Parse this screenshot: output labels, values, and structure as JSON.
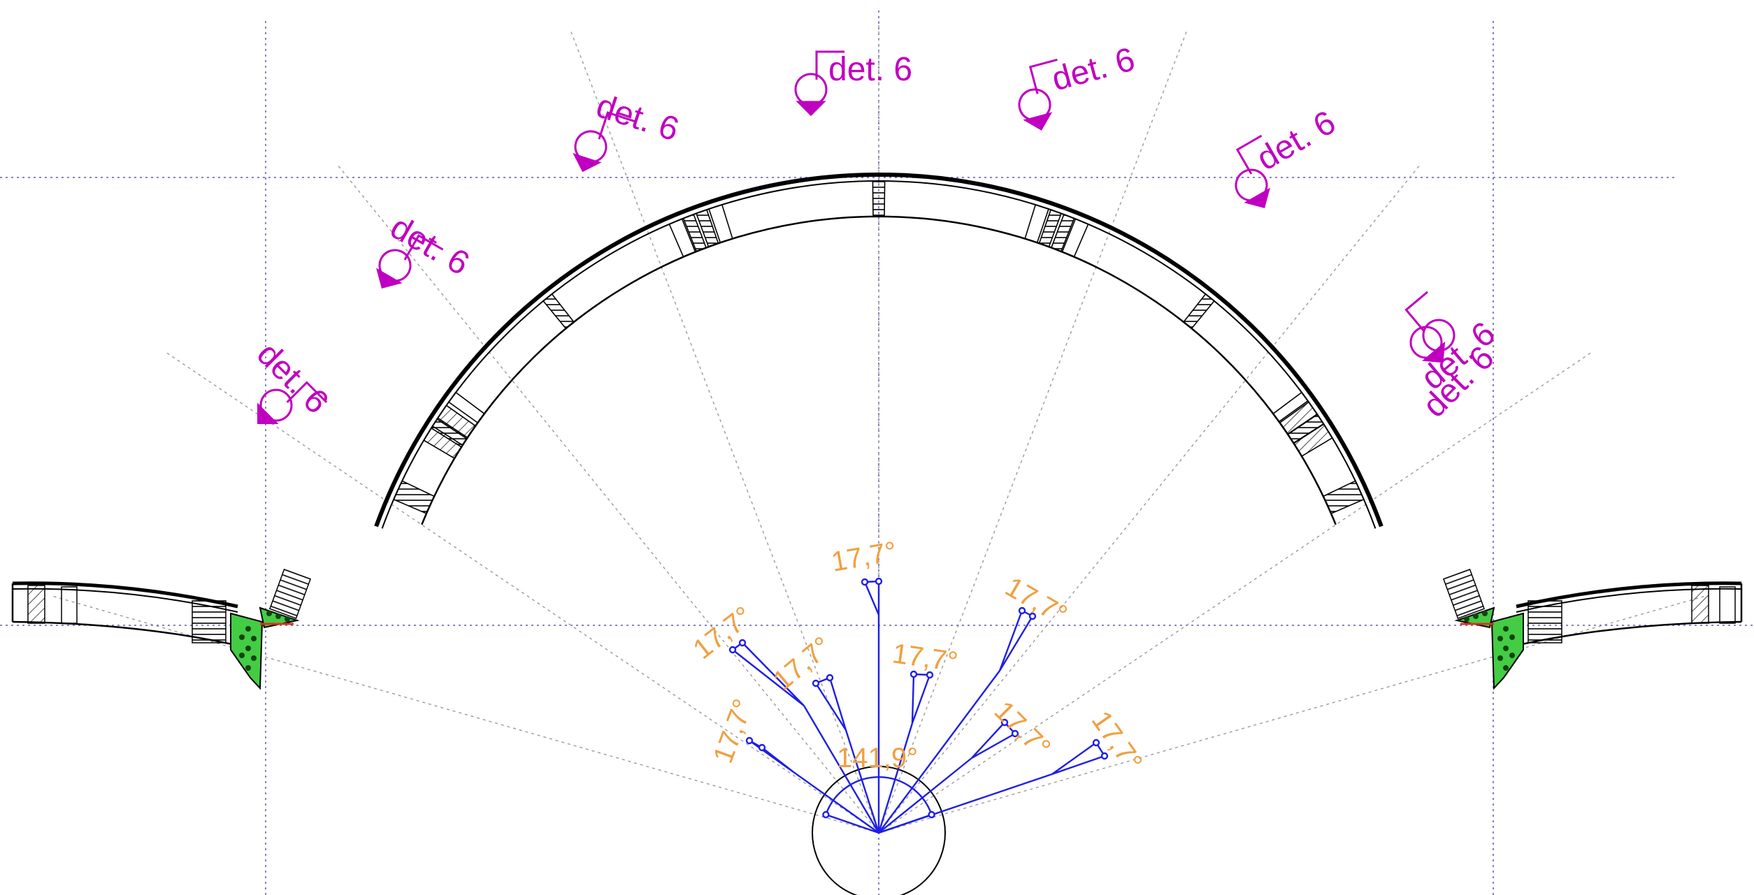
{
  "colors": {
    "structure": "#000000",
    "guides": "#5a5ab0",
    "rays": "#9a9a9a",
    "detail_marker": "#c000c0",
    "angle_label": "#f0a040",
    "angle_lines": "#1e1ee6",
    "connector_plate": "#44cc44",
    "bolt": "#114411"
  },
  "detail_callouts": [
    {
      "text": "det. 6"
    },
    {
      "text": "det. 6"
    },
    {
      "text": "det. 6"
    },
    {
      "text": "det. 6"
    },
    {
      "text": "det. 6"
    },
    {
      "text": "det. 6"
    },
    {
      "text": "det. 6"
    },
    {
      "text": "det. 6"
    }
  ],
  "segment_angles": [
    {
      "text": "17,7°",
      "value_deg": 17.7
    },
    {
      "text": "17,7°",
      "value_deg": 17.7
    },
    {
      "text": "17,7°",
      "value_deg": 17.7
    },
    {
      "text": "17,7°",
      "value_deg": 17.7
    },
    {
      "text": "17,7°",
      "value_deg": 17.7
    },
    {
      "text": "17,7°",
      "value_deg": 17.7
    },
    {
      "text": "17,7°",
      "value_deg": 17.7
    },
    {
      "text": "17,7°",
      "value_deg": 17.7
    }
  ],
  "total_angle": {
    "text": "141,9°",
    "value_deg": 141.9
  }
}
